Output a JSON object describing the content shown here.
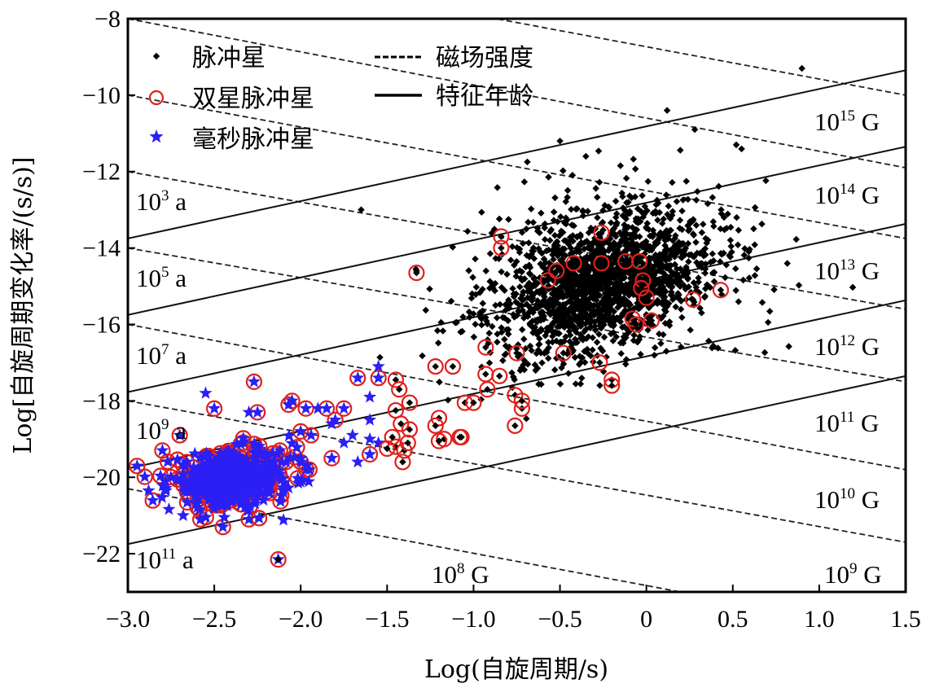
{
  "chart_data": {
    "type": "scatter",
    "title": "",
    "xlabel": "Log(自旋周期/s)",
    "ylabel": "Log[自旋周期变化率/(s/s)]",
    "xlim": [
      -3.0,
      1.5
    ],
    "ylim": [
      -23,
      -8
    ],
    "x_ticks": [
      -3.0,
      -2.5,
      -2.0,
      -1.5,
      -1.0,
      -0.5,
      0,
      0.5,
      1.0,
      1.5
    ],
    "x_tick_labels": [
      "−3.0",
      "−2.5",
      "−2.0",
      "−1.5",
      "−1.0",
      "−0.5",
      "0",
      "0.5",
      "1.0",
      "1.5"
    ],
    "y_ticks": [
      -8,
      -10,
      -12,
      -14,
      -16,
      -18,
      -20,
      -22
    ],
    "y_tick_labels": [
      "−8",
      "−10",
      "−12",
      "−14",
      "−16",
      "−18",
      "−20",
      "−22"
    ],
    "grid": false,
    "legend": {
      "placement": "top-left",
      "entries": [
        {
          "label": "脉冲星",
          "marker": "dot",
          "color": "#000000"
        },
        {
          "label": "双星脉冲星",
          "marker": "open-circle",
          "color": "#e0201c"
        },
        {
          "label": "毫秒脉冲星",
          "marker": "star",
          "color": "#2a1ff5"
        },
        {
          "label": "磁场强度",
          "marker": "dashed-line",
          "color": "#000000"
        },
        {
          "label": "特征年龄",
          "marker": "solid-line",
          "color": "#000000"
        }
      ]
    },
    "characteristic_age_lines": [
      {
        "label_base": "10",
        "label_exp": "3",
        "label_unit": "a",
        "y_at_xmin": -13.75,
        "y_at_xmax": -9.35
      },
      {
        "label_base": "10",
        "label_exp": "5",
        "label_unit": "a",
        "y_at_xmin": -15.75,
        "y_at_xmax": -11.35
      },
      {
        "label_base": "10",
        "label_exp": "7",
        "label_unit": "a",
        "y_at_xmin": -17.77,
        "y_at_xmax": -13.37
      },
      {
        "label_base": "10",
        "label_exp": "9",
        "label_unit": "a",
        "y_at_xmin": -19.77,
        "y_at_xmax": -15.37
      },
      {
        "label_base": "10",
        "label_exp": "11",
        "label_unit": "a",
        "y_at_xmin": -21.75,
        "y_at_xmax": -17.35
      }
    ],
    "magnetic_field_lines": [
      {
        "label_base": "10",
        "label_exp": "15",
        "label_unit": "G",
        "y_at_xmin": -6.2,
        "y_at_xmax": -10.0
      },
      {
        "label_base": "10",
        "label_exp": "14",
        "label_unit": "G",
        "y_at_xmin": -8.0,
        "y_at_xmax": -11.9
      },
      {
        "label_base": "10",
        "label_exp": "13",
        "label_unit": "G",
        "y_at_xmin": -10.0,
        "y_at_xmax": -13.75
      },
      {
        "label_base": "10",
        "label_exp": "12",
        "label_unit": "G",
        "y_at_xmin": -12.0,
        "y_at_xmax": -15.6
      },
      {
        "label_base": "10",
        "label_exp": "11",
        "label_unit": "G",
        "y_at_xmin": -14.0,
        "y_at_xmax": -17.5
      },
      {
        "label_base": "10",
        "label_exp": "10",
        "label_unit": "G",
        "y_at_xmin": -16.0,
        "y_at_xmax": -19.8
      },
      {
        "label_base": "10",
        "label_exp": "9",
        "label_unit": "G",
        "y_at_xmin": -18.0,
        "y_at_xmax": -21.7
      },
      {
        "label_base": "10",
        "label_exp": "8",
        "label_unit": "G",
        "y_at_xmin": -20.3,
        "y_at_xmax": -24.1
      }
    ],
    "series": [
      {
        "name": "脉冲星",
        "marker": "dot",
        "color": "#000000",
        "distribution": {
          "center": [
            -0.25,
            -14.9
          ],
          "spread": [
            0.32,
            0.85
          ],
          "count": 1900
        },
        "notable_points": [
          [
            0.9,
            -9.3
          ],
          [
            0.12,
            -10.4
          ],
          [
            -0.5,
            -11.2
          ],
          [
            -1.33,
            -14.6
          ],
          [
            -1.65,
            -13.0
          ],
          [
            0.28,
            -10.9
          ],
          [
            0.52,
            -11.3
          ],
          [
            -0.35,
            -11.6
          ]
        ]
      },
      {
        "name": "双星脉冲星",
        "marker": "open-circle",
        "color": "#e0201c",
        "points": [
          [
            -1.33,
            -14.65
          ],
          [
            -0.84,
            -13.7
          ],
          [
            -0.84,
            -14.0
          ],
          [
            -0.26,
            -13.6
          ],
          [
            -0.42,
            -14.4
          ],
          [
            -0.26,
            -14.4
          ],
          [
            -0.12,
            -14.35
          ],
          [
            -0.04,
            -14.35
          ],
          [
            -0.52,
            -14.6
          ],
          [
            -0.57,
            -14.85
          ],
          [
            -0.02,
            -14.85
          ],
          [
            0.0,
            -15.3
          ],
          [
            -0.03,
            -15.05
          ],
          [
            0.27,
            -15.35
          ],
          [
            0.43,
            -15.1
          ],
          [
            -0.08,
            -15.85
          ],
          [
            -0.06,
            -16.0
          ],
          [
            0.03,
            -15.9
          ],
          [
            -0.48,
            -16.75
          ],
          [
            -0.27,
            -17.0
          ],
          [
            -0.2,
            -17.45
          ],
          [
            -0.2,
            -17.6
          ],
          [
            -0.75,
            -16.75
          ],
          [
            -0.93,
            -16.6
          ],
          [
            -1.22,
            -17.1
          ],
          [
            -1.12,
            -17.1
          ],
          [
            -0.93,
            -17.3
          ],
          [
            -0.85,
            -17.35
          ],
          [
            -0.92,
            -17.7
          ],
          [
            -0.76,
            -17.85
          ],
          [
            -0.72,
            -18.2
          ],
          [
            -1.05,
            -18.05
          ],
          [
            -1.0,
            -18.05
          ],
          [
            -0.76,
            -18.65
          ],
          [
            -1.2,
            -18.45
          ],
          [
            -1.22,
            -18.65
          ],
          [
            -1.08,
            -18.95
          ],
          [
            -1.07,
            -18.95
          ],
          [
            -1.17,
            -19.0
          ],
          [
            -1.2,
            -19.05
          ],
          [
            -1.45,
            -17.45
          ],
          [
            -1.43,
            -17.7
          ],
          [
            -1.45,
            -18.25
          ],
          [
            -1.42,
            -18.6
          ],
          [
            -1.37,
            -18.75
          ],
          [
            -1.37,
            -18.05
          ],
          [
            -1.45,
            -19.2
          ],
          [
            -1.4,
            -19.3
          ],
          [
            -1.5,
            -19.25
          ],
          [
            -1.41,
            -19.6
          ],
          [
            -1.47,
            -18.95
          ],
          [
            -1.38,
            -19.1
          ],
          [
            -2.13,
            -22.15
          ],
          [
            -0.72,
            -18.0
          ]
        ]
      },
      {
        "name": "毫秒脉冲星",
        "marker": "star",
        "color": "#2a1ff5",
        "distribution": {
          "center": [
            -2.4,
            -20.05
          ],
          "spread": [
            0.13,
            0.35
          ],
          "count": 420
        },
        "points": [
          [
            -2.55,
            -17.8
          ],
          [
            -2.27,
            -17.5
          ],
          [
            -2.25,
            -18.3
          ],
          [
            -2.3,
            -18.3
          ],
          [
            -2.07,
            -18.1
          ],
          [
            -2.05,
            -18.0
          ],
          [
            -1.94,
            -18.9
          ],
          [
            -1.82,
            -18.6
          ],
          [
            -1.8,
            -18.5
          ],
          [
            -1.75,
            -18.2
          ],
          [
            -1.85,
            -18.2
          ],
          [
            -2.0,
            -18.8
          ],
          [
            -2.1,
            -20.35
          ],
          [
            -2.13,
            -22.15
          ],
          [
            -2.5,
            -18.2
          ],
          [
            -1.97,
            -18.2
          ],
          [
            -1.9,
            -18.2
          ],
          [
            -1.67,
            -17.4
          ],
          [
            -1.6,
            -17.9
          ],
          [
            -1.55,
            -17.1
          ],
          [
            -1.55,
            -17.4
          ],
          [
            -1.6,
            -18.5
          ],
          [
            -1.7,
            -18.9
          ],
          [
            -1.75,
            -19.1
          ],
          [
            -1.6,
            -19.0
          ],
          [
            -1.55,
            -19.1
          ],
          [
            -1.6,
            -19.4
          ],
          [
            -1.67,
            -19.6
          ],
          [
            -1.82,
            -19.5
          ],
          [
            -1.95,
            -19.8
          ],
          [
            -2.0,
            -19.6
          ],
          [
            -2.12,
            -19.3
          ],
          [
            -2.2,
            -19.9
          ],
          [
            -2.3,
            -21.1
          ],
          [
            -2.45,
            -21.3
          ],
          [
            -2.58,
            -21.1
          ],
          [
            -2.68,
            -21.0
          ],
          [
            -2.78,
            -20.35
          ],
          [
            -2.88,
            -20.35
          ],
          [
            -2.7,
            -18.9
          ],
          [
            -2.8,
            -19.3
          ]
        ],
        "ringed_fraction": 0.55
      }
    ]
  }
}
